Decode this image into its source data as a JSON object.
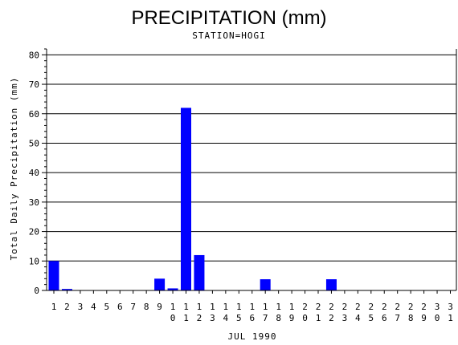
{
  "chart_data": {
    "type": "bar",
    "title": "PRECIPITATION (mm)",
    "subtitle": "STATION=HOGI",
    "xlabel": "JUL 1990",
    "ylabel": "Total Daily Precipitation (mm)",
    "ylim": [
      0,
      82
    ],
    "yticks": [
      0,
      10,
      20,
      30,
      40,
      50,
      60,
      70,
      80
    ],
    "grid": true,
    "bar_color": "#0000ff",
    "categories": [
      "1",
      "2",
      "3",
      "4",
      "5",
      "6",
      "7",
      "8",
      "9",
      "10",
      "11",
      "12",
      "13",
      "14",
      "15",
      "16",
      "17",
      "18",
      "19",
      "20",
      "21",
      "22",
      "23",
      "24",
      "25",
      "26",
      "27",
      "28",
      "29",
      "30",
      "31"
    ],
    "values": [
      10,
      0.5,
      0,
      0,
      0,
      0,
      0,
      0,
      4,
      0.7,
      62,
      12,
      0,
      0,
      0,
      0,
      3.8,
      0,
      0,
      0,
      0,
      3.8,
      0,
      0,
      0,
      0,
      0,
      0,
      0,
      0,
      0
    ]
  }
}
